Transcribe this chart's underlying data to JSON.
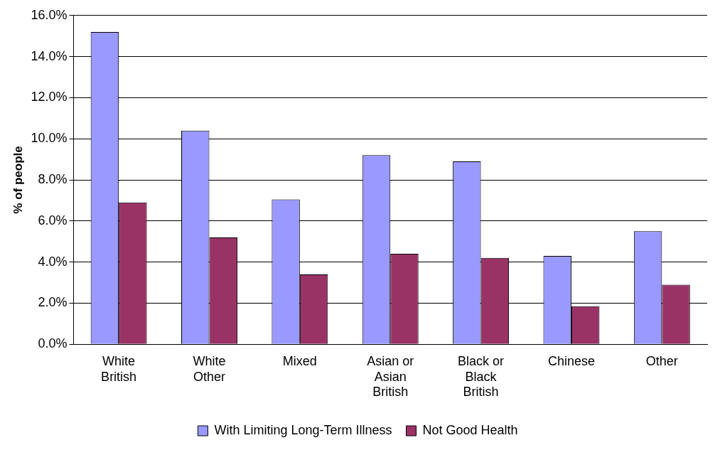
{
  "chart_data": {
    "type": "bar",
    "ylabel": "% of people",
    "categories": [
      "White British",
      "White Other",
      "Mixed",
      "Asian or Asian British",
      "Black or Black British",
      "Chinese",
      "Other"
    ],
    "series": [
      {
        "name": "With Limiting Long-Term Illness",
        "color": "#9999ff",
        "values": [
          15.2,
          10.4,
          7.05,
          9.2,
          8.9,
          4.3,
          5.5
        ]
      },
      {
        "name": "Not Good Health",
        "color": "#993366",
        "values": [
          6.9,
          5.2,
          3.4,
          4.4,
          4.2,
          1.85,
          2.9
        ]
      }
    ],
    "ylim": [
      0,
      16
    ],
    "yticks": [
      {
        "value": 0,
        "label": "0.0%"
      },
      {
        "value": 2,
        "label": "2.0%"
      },
      {
        "value": 4,
        "label": "4.0%"
      },
      {
        "value": 6,
        "label": "6.0%"
      },
      {
        "value": 8,
        "label": "8.0%"
      },
      {
        "value": 10,
        "label": "10.0%"
      },
      {
        "value": 12,
        "label": "12.0%"
      },
      {
        "value": 14,
        "label": "14.0%"
      },
      {
        "value": 16,
        "label": "16.0%"
      }
    ],
    "grid": "y",
    "legend": "bottom"
  }
}
